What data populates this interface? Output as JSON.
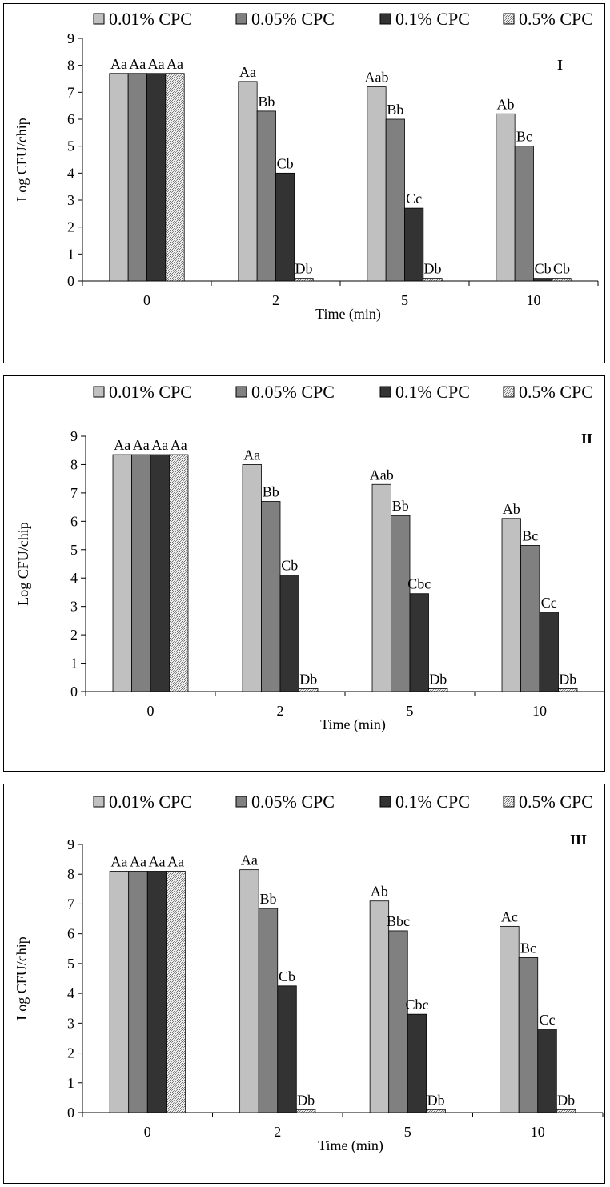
{
  "legend": [
    "0.01% CPC",
    "0.05% CPC",
    "0.1% CPC",
    "0.5% CPC"
  ],
  "colors": [
    "#c0c0c0",
    "#808080",
    "#333333",
    "#d8d8d8"
  ],
  "chart_data": [
    {
      "type": "bar",
      "panel_label": "I",
      "categories": [
        "0",
        "2",
        "5",
        "10"
      ],
      "xlabel": "Time (min)",
      "ylabel": "Log CFU/chip",
      "ylim": [
        0,
        9
      ],
      "yticks": [
        "0",
        "1",
        "2",
        "3",
        "4",
        "5",
        "6",
        "7",
        "8",
        "9"
      ],
      "legend_position": "top",
      "series": [
        {
          "name": "0.01% CPC",
          "values": [
            7.7,
            7.4,
            7.2,
            6.2
          ],
          "labels": [
            "Aa",
            "Aa",
            "Aab",
            "Ab"
          ]
        },
        {
          "name": "0.05% CPC",
          "values": [
            7.7,
            6.3,
            6.0,
            5.0
          ],
          "labels": [
            "Aa",
            "Bb",
            "Bb",
            "Bc"
          ]
        },
        {
          "name": "0.1% CPC",
          "values": [
            7.7,
            4.0,
            2.7,
            0.1
          ],
          "labels": [
            "Aa",
            "Cb",
            "Cc",
            "Cb"
          ]
        },
        {
          "name": "0.5% CPC",
          "values": [
            7.7,
            0.1,
            0.1,
            0.1
          ],
          "labels": [
            "Aa",
            "Db",
            "Db",
            "Cb"
          ]
        }
      ]
    },
    {
      "type": "bar",
      "panel_label": "II",
      "categories": [
        "0",
        "2",
        "5",
        "10"
      ],
      "xlabel": "Time (min)",
      "ylabel": "Log CFU/chip",
      "ylim": [
        0,
        9
      ],
      "yticks": [
        "0",
        "1",
        "2",
        "3",
        "4",
        "5",
        "6",
        "7",
        "8",
        "9"
      ],
      "legend_position": "top",
      "series": [
        {
          "name": "0.01% CPC",
          "values": [
            8.35,
            8.0,
            7.3,
            6.1
          ],
          "labels": [
            "Aa",
            "Aa",
            "Aab",
            "Ab"
          ]
        },
        {
          "name": "0.05% CPC",
          "values": [
            8.35,
            6.7,
            6.2,
            5.15
          ],
          "labels": [
            "Aa",
            "Bb",
            "Bb",
            "Bc"
          ]
        },
        {
          "name": "0.1% CPC",
          "values": [
            8.35,
            4.1,
            3.45,
            2.8
          ],
          "labels": [
            "Aa",
            "Cb",
            "Cbc",
            "Cc"
          ]
        },
        {
          "name": "0.5% CPC",
          "values": [
            8.35,
            0.1,
            0.1,
            0.1
          ],
          "labels": [
            "Aa",
            "Db",
            "Db",
            "Db"
          ]
        }
      ]
    },
    {
      "type": "bar",
      "panel_label": "III",
      "categories": [
        "0",
        "2",
        "5",
        "10"
      ],
      "xlabel": "Time (min)",
      "ylabel": "Log CFU/chip",
      "ylim": [
        0,
        9
      ],
      "yticks": [
        "0",
        "1",
        "2",
        "3",
        "4",
        "5",
        "6",
        "7",
        "8",
        "9"
      ],
      "legend_position": "top",
      "series": [
        {
          "name": "0.01% CPC",
          "values": [
            8.1,
            8.15,
            7.1,
            6.25
          ],
          "labels": [
            "Aa",
            "Aa",
            "Ab",
            "Ac"
          ]
        },
        {
          "name": "0.05% CPC",
          "values": [
            8.1,
            6.85,
            6.1,
            5.2
          ],
          "labels": [
            "Aa",
            "Bb",
            "Bbc",
            "Bc"
          ]
        },
        {
          "name": "0.1% CPC",
          "values": [
            8.1,
            4.25,
            3.3,
            2.8
          ],
          "labels": [
            "Aa",
            "Cb",
            "Cbc",
            "Cc"
          ]
        },
        {
          "name": "0.5% CPC",
          "values": [
            8.1,
            0.1,
            0.1,
            0.1
          ],
          "labels": [
            "Aa",
            "Db",
            "Db",
            "Db"
          ]
        }
      ]
    }
  ]
}
